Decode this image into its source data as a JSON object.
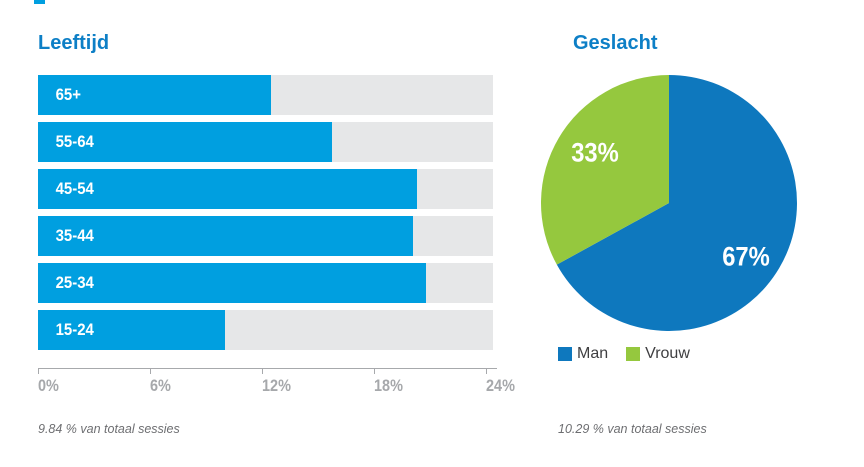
{
  "page": {
    "background": "#ffffff"
  },
  "colors": {
    "bar_fill": "#009fe0",
    "bar_track": "#e6e7e8",
    "pie_man": "#0e78be",
    "pie_vrouw": "#95c83e",
    "title": "#0d7fc6",
    "axis_text": "#a6a8ab",
    "footnote_text": "#6d6e71",
    "legend_text": "#3f3f41"
  },
  "chart_data": [
    {
      "type": "bar",
      "orientation": "horizontal",
      "title": "Leeftijd",
      "categories": [
        "65+",
        "55-64",
        "45-54",
        "35-44",
        "25-34",
        "15-24"
      ],
      "values": [
        12.6,
        15.9,
        20.5,
        20.3,
        21.0,
        10.1
      ],
      "unit": "%",
      "xlim": [
        0,
        24.6
      ],
      "x_ticks": [
        0,
        6,
        12,
        18,
        24
      ],
      "x_tick_labels": [
        "0%",
        "6%",
        "12%",
        "18%",
        "24%"
      ],
      "grid": false,
      "bar_color": "#009fe0",
      "track_color": "#e6e7e8",
      "footnote": "9.84 % van totaal sessies"
    },
    {
      "type": "pie",
      "title": "Geslacht",
      "labels": [
        "Man",
        "Vrouw"
      ],
      "values": [
        67,
        33
      ],
      "slice_labels": [
        "67%",
        "33%"
      ],
      "colors": [
        "#0e78be",
        "#95c83e"
      ],
      "start_angle_deg": 0,
      "direction": "clockwise",
      "legend_position": "bottom",
      "footnote": "10.29 % van totaal sessies"
    }
  ]
}
